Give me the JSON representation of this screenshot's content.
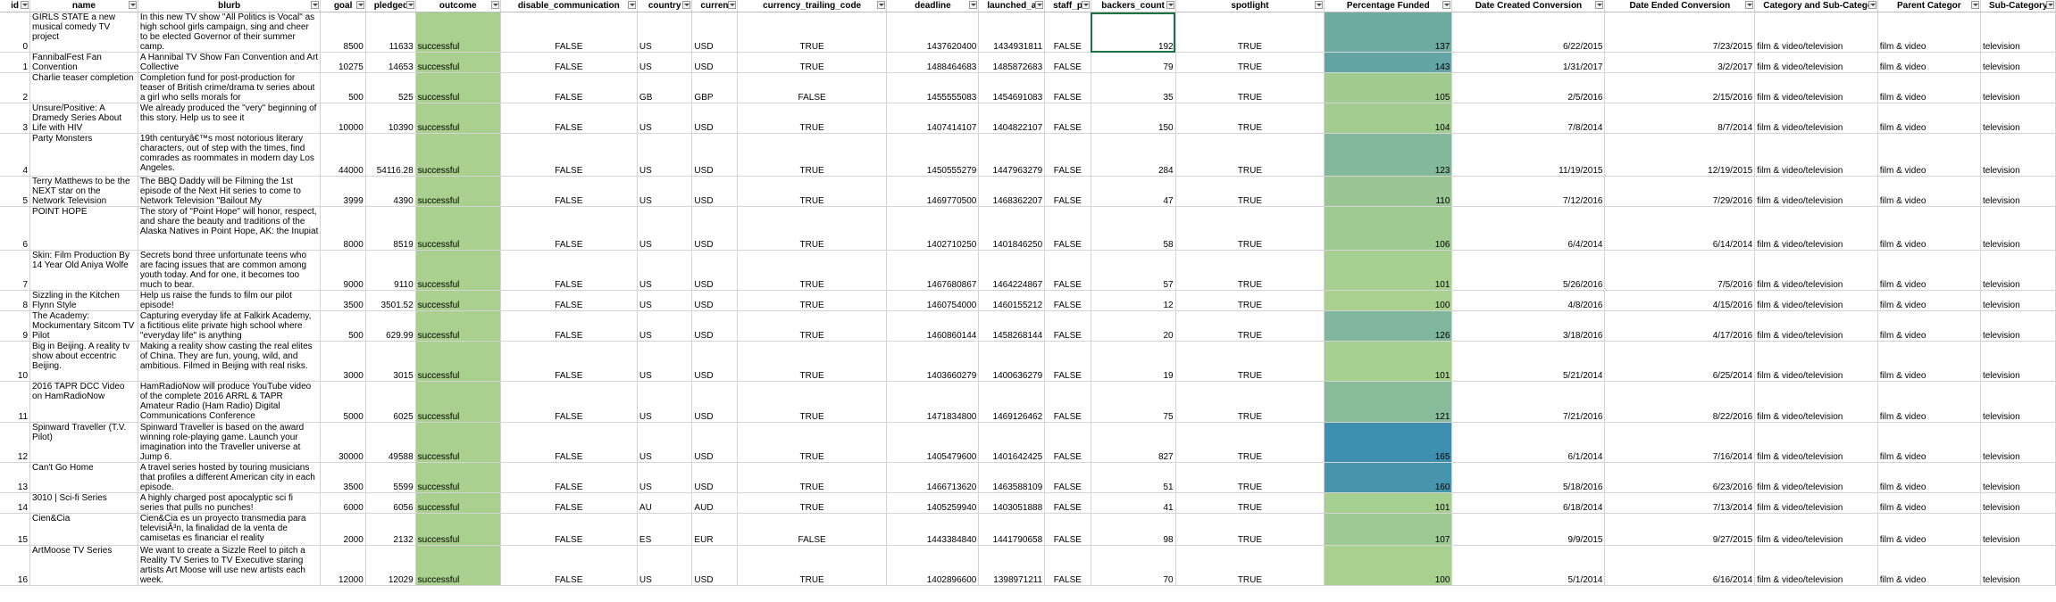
{
  "sheet": {
    "headers": [
      "id",
      "name",
      "blurb",
      "goal",
      "pledged",
      "outcome",
      "disable_communication",
      "country",
      "currency",
      "currency_trailing_code",
      "deadline",
      "launched_at",
      "staff_pick",
      "backers_count",
      "spotlight",
      "Percentage Funded",
      "Date Created Conversion",
      "Date Ended Conversion",
      "Category and Sub-Category",
      "Parent Category",
      "Sub-Category"
    ],
    "header_display": [
      "id",
      "name",
      "blurb",
      "goal",
      "pledged",
      "outcome",
      "disable_communication",
      "country",
      "currency",
      "currency_trailing_code",
      "deadline",
      "launched_a",
      "staff_pic",
      "backers_count",
      "spotlight",
      "Percentage Funded",
      "Date Created Conversion",
      "Date Ended Conversion",
      "Category and Sub-Category",
      "Parent Categor",
      "Sub-Category"
    ],
    "selected_cell": "backers_count row 0",
    "rows": [
      {
        "id": "0",
        "name": "GIRLS STATE a new musical comedy TV project",
        "blurb": "In this new TV show \"All Politics is Vocal\" as high school girls campaign, sing and cheer to be elected Governor of their summer camp.",
        "goal": "8500",
        "pledged": "11633",
        "outcome": "successful",
        "disable_communication": "FALSE",
        "country": "US",
        "currency": "USD",
        "currency_trailing_code": "TRUE",
        "deadline": "1437620400",
        "launched_at": "1434931811",
        "staff_pick": "FALSE",
        "backers_count": "192",
        "spotlight": "TRUE",
        "pct": "137",
        "date_created": "6/22/2015",
        "date_ended": "7/23/2015",
        "cat_sub": "film & video/television",
        "parent": "film & video",
        "sub": "television"
      },
      {
        "id": "1",
        "name": "FannibalFest Fan Convention",
        "blurb": "A Hannibal TV Show Fan Convention and Art Collective",
        "goal": "10275",
        "pledged": "14653",
        "outcome": "successful",
        "disable_communication": "FALSE",
        "country": "US",
        "currency": "USD",
        "currency_trailing_code": "TRUE",
        "deadline": "1488464683",
        "launched_at": "1485872683",
        "staff_pick": "FALSE",
        "backers_count": "79",
        "spotlight": "TRUE",
        "pct": "143",
        "date_created": "1/31/2017",
        "date_ended": "3/2/2017",
        "cat_sub": "film & video/television",
        "parent": "film & video",
        "sub": "television"
      },
      {
        "id": "2",
        "name": "Charlie teaser completion",
        "blurb": "Completion fund for post-production for teaser of British crime/drama tv series about a girl who sells morals for",
        "goal": "500",
        "pledged": "525",
        "outcome": "successful",
        "disable_communication": "FALSE",
        "country": "GB",
        "currency": "GBP",
        "currency_trailing_code": "FALSE",
        "deadline": "1455555083",
        "launched_at": "1454691083",
        "staff_pick": "FALSE",
        "backers_count": "35",
        "spotlight": "TRUE",
        "pct": "105",
        "date_created": "2/5/2016",
        "date_ended": "2/15/2016",
        "cat_sub": "film & video/television",
        "parent": "film & video",
        "sub": "television"
      },
      {
        "id": "3",
        "name": "Unsure/Positive: A Dramedy Series About Life with HIV",
        "blurb": "We already produced the \"very\" beginning of this story. Help us to see it",
        "goal": "10000",
        "pledged": "10390",
        "outcome": "successful",
        "disable_communication": "FALSE",
        "country": "US",
        "currency": "USD",
        "currency_trailing_code": "TRUE",
        "deadline": "1407414107",
        "launched_at": "1404822107",
        "staff_pick": "FALSE",
        "backers_count": "150",
        "spotlight": "TRUE",
        "pct": "104",
        "date_created": "7/8/2014",
        "date_ended": "8/7/2014",
        "cat_sub": "film & video/television",
        "parent": "film & video",
        "sub": "television"
      },
      {
        "id": "4",
        "name": "Party Monsters",
        "blurb": "19th centuryâ€™s most notorious literary characters, out of step with the times, find comrades as roommates in modern day Los Angeles.",
        "goal": "44000",
        "pledged": "54116.28",
        "outcome": "successful",
        "disable_communication": "FALSE",
        "country": "US",
        "currency": "USD",
        "currency_trailing_code": "TRUE",
        "deadline": "1450555279",
        "launched_at": "1447963279",
        "staff_pick": "FALSE",
        "backers_count": "284",
        "spotlight": "TRUE",
        "pct": "123",
        "date_created": "11/19/2015",
        "date_ended": "12/19/2015",
        "cat_sub": "film & video/television",
        "parent": "film & video",
        "sub": "television"
      },
      {
        "id": "5",
        "name": "Terry Matthews to be the NEXT star on the Network Television",
        "blurb": "The BBQ Daddy will be Filming the 1st episode of the Next Hit series to come to Network Television \"Bailout My",
        "goal": "3999",
        "pledged": "4390",
        "outcome": "successful",
        "disable_communication": "FALSE",
        "country": "US",
        "currency": "USD",
        "currency_trailing_code": "TRUE",
        "deadline": "1469770500",
        "launched_at": "1468362207",
        "staff_pick": "FALSE",
        "backers_count": "47",
        "spotlight": "TRUE",
        "pct": "110",
        "date_created": "7/12/2016",
        "date_ended": "7/29/2016",
        "cat_sub": "film & video/television",
        "parent": "film & video",
        "sub": "television"
      },
      {
        "id": "6",
        "name": "POINT HOPE",
        "blurb": "The story of \"Point Hope\" will honor, respect, and share the beauty and traditions of the Alaska Natives in Point Hope, AK: the Inupiat",
        "goal": "8000",
        "pledged": "8519",
        "outcome": "successful",
        "disable_communication": "FALSE",
        "country": "US",
        "currency": "USD",
        "currency_trailing_code": "TRUE",
        "deadline": "1402710250",
        "launched_at": "1401846250",
        "staff_pick": "FALSE",
        "backers_count": "58",
        "spotlight": "TRUE",
        "pct": "106",
        "date_created": "6/4/2014",
        "date_ended": "6/14/2014",
        "cat_sub": "film & video/television",
        "parent": "film & video",
        "sub": "television"
      },
      {
        "id": "7",
        "name": "Skin: Film Production By 14 Year Old Aniya Wolfe",
        "blurb": "Secrets bond three unfortunate teens who are facing issues that are common among youth today. And for one, it becomes too much to bear.",
        "goal": "9000",
        "pledged": "9110",
        "outcome": "successful",
        "disable_communication": "FALSE",
        "country": "US",
        "currency": "USD",
        "currency_trailing_code": "TRUE",
        "deadline": "1467680867",
        "launched_at": "1464224867",
        "staff_pick": "FALSE",
        "backers_count": "57",
        "spotlight": "TRUE",
        "pct": "101",
        "date_created": "5/26/2016",
        "date_ended": "7/5/2016",
        "cat_sub": "film & video/television",
        "parent": "film & video",
        "sub": "television"
      },
      {
        "id": "8",
        "name": "Sizzling in the Kitchen Flynn Style",
        "blurb": "Help us raise the funds to film our pilot episode!",
        "goal": "3500",
        "pledged": "3501.52",
        "outcome": "successful",
        "disable_communication": "FALSE",
        "country": "US",
        "currency": "USD",
        "currency_trailing_code": "TRUE",
        "deadline": "1460754000",
        "launched_at": "1460155212",
        "staff_pick": "FALSE",
        "backers_count": "12",
        "spotlight": "TRUE",
        "pct": "100",
        "date_created": "4/8/2016",
        "date_ended": "4/15/2016",
        "cat_sub": "film & video/television",
        "parent": "film & video",
        "sub": "television"
      },
      {
        "id": "9",
        "name": "The Academy: Mockumentary Sitcom TV Pilot",
        "blurb": "Capturing everyday life at Falkirk Academy, a fictitious elite private high school where \"everyday life\" is anything",
        "goal": "500",
        "pledged": "629.99",
        "outcome": "successful",
        "disable_communication": "FALSE",
        "country": "US",
        "currency": "USD",
        "currency_trailing_code": "TRUE",
        "deadline": "1460860144",
        "launched_at": "1458268144",
        "staff_pick": "FALSE",
        "backers_count": "20",
        "spotlight": "TRUE",
        "pct": "126",
        "date_created": "3/18/2016",
        "date_ended": "4/17/2016",
        "cat_sub": "film & video/television",
        "parent": "film & video",
        "sub": "television"
      },
      {
        "id": "10",
        "name": "Big in Beijing. A reality tv show about eccentric Beijing.",
        "blurb": "Making a reality show casting the real elites of China. They are fun, young, wild, and ambitious. Filmed in Beijing with real risks.",
        "goal": "3000",
        "pledged": "3015",
        "outcome": "successful",
        "disable_communication": "FALSE",
        "country": "US",
        "currency": "USD",
        "currency_trailing_code": "TRUE",
        "deadline": "1403660279",
        "launched_at": "1400636279",
        "staff_pick": "FALSE",
        "backers_count": "19",
        "spotlight": "TRUE",
        "pct": "101",
        "date_created": "5/21/2014",
        "date_ended": "6/25/2014",
        "cat_sub": "film & video/television",
        "parent": "film & video",
        "sub": "television"
      },
      {
        "id": "11",
        "name": "2016 TAPR DCC Video on HamRadioNow",
        "blurb": "HamRadioNow will produce YouTube video of the complete 2016 ARRL & TAPR Amateur Radio (Ham Radio) Digital Communications Conference",
        "goal": "5000",
        "pledged": "6025",
        "outcome": "successful",
        "disable_communication": "FALSE",
        "country": "US",
        "currency": "USD",
        "currency_trailing_code": "TRUE",
        "deadline": "1471834800",
        "launched_at": "1469126462",
        "staff_pick": "FALSE",
        "backers_count": "75",
        "spotlight": "TRUE",
        "pct": "121",
        "date_created": "7/21/2016",
        "date_ended": "8/22/2016",
        "cat_sub": "film & video/television",
        "parent": "film & video",
        "sub": "television"
      },
      {
        "id": "12",
        "name": "Spinward Traveller (T.V. Pilot)",
        "blurb": "Spinward Traveller is based on the award winning role-playing game. Launch your imagination into the Traveller universe at Jump 6.",
        "goal": "30000",
        "pledged": "49588",
        "outcome": "successful",
        "disable_communication": "FALSE",
        "country": "US",
        "currency": "USD",
        "currency_trailing_code": "TRUE",
        "deadline": "1405479600",
        "launched_at": "1401642425",
        "staff_pick": "FALSE",
        "backers_count": "827",
        "spotlight": "TRUE",
        "pct": "165",
        "date_created": "6/1/2014",
        "date_ended": "7/16/2014",
        "cat_sub": "film & video/television",
        "parent": "film & video",
        "sub": "television"
      },
      {
        "id": "13",
        "name": "Can't Go Home",
        "blurb": "A travel series hosted by touring musicians that profiles a different American city in each episode.",
        "goal": "3500",
        "pledged": "5599",
        "outcome": "successful",
        "disable_communication": "FALSE",
        "country": "US",
        "currency": "USD",
        "currency_trailing_code": "TRUE",
        "deadline": "1466713620",
        "launched_at": "1463588109",
        "staff_pick": "FALSE",
        "backers_count": "51",
        "spotlight": "TRUE",
        "pct": "160",
        "date_created": "5/18/2016",
        "date_ended": "6/23/2016",
        "cat_sub": "film & video/television",
        "parent": "film & video",
        "sub": "television"
      },
      {
        "id": "14",
        "name": "3010 | Sci-fi Series",
        "blurb": "A highly charged post apocalyptic sci fi series that pulls no punches!",
        "goal": "6000",
        "pledged": "6056",
        "outcome": "successful",
        "disable_communication": "FALSE",
        "country": "AU",
        "currency": "AUD",
        "currency_trailing_code": "TRUE",
        "deadline": "1405259940",
        "launched_at": "1403051888",
        "staff_pick": "FALSE",
        "backers_count": "41",
        "spotlight": "TRUE",
        "pct": "101",
        "date_created": "6/18/2014",
        "date_ended": "7/13/2014",
        "cat_sub": "film & video/television",
        "parent": "film & video",
        "sub": "television"
      },
      {
        "id": "15",
        "name": "Cien&Cia",
        "blurb": "Cien&Cia es un proyecto transmedia para televisiÃ³n, la finalidad de la venta de camisetas es financiar el reality",
        "goal": "2000",
        "pledged": "2132",
        "outcome": "successful",
        "disable_communication": "FALSE",
        "country": "ES",
        "currency": "EUR",
        "currency_trailing_code": "FALSE",
        "deadline": "1443384840",
        "launched_at": "1441790658",
        "staff_pick": "FALSE",
        "backers_count": "98",
        "spotlight": "TRUE",
        "pct": "107",
        "date_created": "9/9/2015",
        "date_ended": "9/27/2015",
        "cat_sub": "film & video/television",
        "parent": "film & video",
        "sub": "television"
      },
      {
        "id": "16",
        "name": "ArtMoose TV Series",
        "blurb": "We want to create a Sizzle Reel to pitch a Reality TV Series to TV Executive staring artists Art Moose will use new artists each week.",
        "goal": "12000",
        "pledged": "12029",
        "outcome": "successful",
        "disable_communication": "FALSE",
        "country": "US",
        "currency": "USD",
        "currency_trailing_code": "TRUE",
        "deadline": "1402896600",
        "launched_at": "1398971211",
        "staff_pick": "FALSE",
        "backers_count": "70",
        "spotlight": "TRUE",
        "pct": "100",
        "date_created": "5/1/2014",
        "date_ended": "6/16/2014",
        "cat_sub": "film & video/television",
        "parent": "film & video",
        "sub": "television"
      }
    ],
    "colors": {
      "outcome_fill": "#a9d08e",
      "grid": "#d4d4d4",
      "selected_border": "#1e7145",
      "scale_low": "#a9d08e",
      "scale_high": "#3f8fb0"
    }
  }
}
